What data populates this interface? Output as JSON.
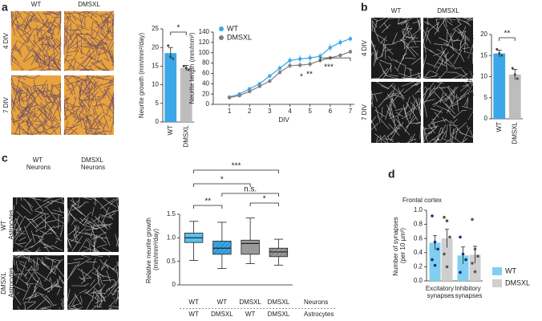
{
  "panel_labels": [
    "a",
    "b",
    "c",
    "d"
  ],
  "image_panels": [
    {
      "columns": [
        "WT",
        "DMSXL"
      ],
      "rows": [
        "4 DIV",
        "7 DIV"
      ]
    },
    {
      "columns": [
        "WT",
        "DMSXL"
      ],
      "rows": [
        "4 DIV",
        "7 DIV"
      ]
    },
    {
      "columns": [
        "WT Neurons",
        "DMSXL Neurons"
      ],
      "rows": [
        "WT Astrocytes",
        "DMSXL Astrocytes"
      ]
    }
  ],
  "chart_data": [
    {
      "type": "bar",
      "ylabel": "Neurite growth (mm/mm²/day)",
      "categories": [
        "WT",
        "DMSXL"
      ],
      "values": [
        18.5,
        14.5
      ],
      "errors": [
        1.5,
        0.7
      ],
      "points": [
        [
          20.5,
          17.5,
          17
        ],
        [
          15,
          14.5,
          14
        ]
      ],
      "colors": [
        "#3aa8e8",
        "#bdbdbd"
      ],
      "ylim": [
        0,
        25
      ],
      "yticks": [
        0,
        5,
        10,
        15,
        20,
        25
      ],
      "annotations": [
        "*"
      ]
    },
    {
      "type": "line",
      "ylabel": "Neurite length (mm/mm²)",
      "xlabel": "DIV",
      "x": [
        1,
        1.5,
        2,
        2.5,
        3,
        3.5,
        4,
        4.5,
        5,
        5.5,
        6,
        6.5,
        7
      ],
      "series": [
        {
          "name": "WT",
          "color": "#3aa8e8",
          "values": [
            14,
            20,
            30,
            40,
            55,
            70,
            85,
            88,
            90,
            93,
            110,
            120,
            127
          ],
          "errors": [
            1,
            1,
            2,
            3,
            4,
            5,
            6,
            7,
            7,
            7,
            7,
            6,
            5
          ]
        },
        {
          "name": "DMSXL",
          "color": "#7f7f7f",
          "values": [
            13,
            17,
            25,
            35,
            45,
            62,
            75,
            76,
            78,
            85,
            90,
            95,
            102
          ],
          "errors": [
            1,
            1,
            2,
            2,
            3,
            4,
            5,
            5,
            5,
            4,
            4,
            4,
            4
          ]
        }
      ],
      "xlim": [
        0.2,
        7.2
      ],
      "xticks": [
        1,
        2,
        3,
        4,
        5,
        6,
        7
      ],
      "ylim": [
        0,
        140
      ],
      "yticks": [
        0,
        20,
        40,
        60,
        80,
        100,
        120,
        140
      ],
      "legend": "upper left",
      "annotations": [
        "*",
        "**",
        "***"
      ]
    },
    {
      "type": "bar",
      "ylabel": "Neurite growth (mm/mm²/day)",
      "categories": [
        "WT",
        "DMSXL"
      ],
      "values": [
        15.5,
        10.5
      ],
      "errors": [
        0.8,
        1.2
      ],
      "points": [
        [
          16.5,
          15.5,
          15
        ],
        [
          12,
          10.5,
          9.5
        ]
      ],
      "colors": [
        "#3aa8e8",
        "#bdbdbd"
      ],
      "ylim": [
        0,
        20
      ],
      "yticks": [
        0,
        5,
        10,
        15,
        20
      ],
      "annotations": [
        "**"
      ]
    },
    {
      "type": "box",
      "ylabel": "Relative neurite growth (mm/mm²/day)",
      "row_labels": [
        "Neurons",
        "Astrocytes"
      ],
      "neurons": [
        "WT",
        "WT",
        "DMSXL",
        "DMSXL"
      ],
      "astrocytes": [
        "WT",
        "DMSXL",
        "WT",
        "DMSXL"
      ],
      "boxes": [
        {
          "min": 0.52,
          "q1": 0.9,
          "median": 1.0,
          "q3": 1.1,
          "max": 1.35
        },
        {
          "min": 0.35,
          "q1": 0.65,
          "median": 0.78,
          "q3": 0.93,
          "max": 1.33
        },
        {
          "min": 0.45,
          "q1": 0.65,
          "median": 0.88,
          "q3": 0.95,
          "max": 1.42
        },
        {
          "min": 0.42,
          "q1": 0.6,
          "median": 0.7,
          "q3": 0.78,
          "max": 0.97
        }
      ],
      "colors": [
        "#5bc0eb",
        "#3aa8e8",
        "#9a9a9a",
        "#9a9a9a"
      ],
      "hatched": [
        false,
        true,
        false,
        true
      ],
      "ylim": [
        0,
        1.5
      ],
      "yticks": [
        0,
        0.5,
        {
          "value": 1,
          "label": "1.0"
        },
        1.5
      ],
      "annotations": [
        "***",
        "*",
        "n.s.",
        "**",
        "*"
      ]
    },
    {
      "type": "grouped_bar",
      "title": "Frontal cortex",
      "ylabel": "Number of synapses (per 10 µm²)",
      "categories": [
        "Excitatory synapses",
        "Inhibitory synapses"
      ],
      "series": [
        {
          "name": "WT",
          "color": "#7fd0f0",
          "dot_color": "#1a2a8a",
          "values": [
            0.54,
            0.36
          ],
          "errors": [
            0.1,
            0.12
          ],
          "points": [
            [
              0.92,
              0.55,
              0.45,
              0.3,
              0.22
            ],
            [
              0.62,
              0.38,
              0.3,
              0.12
            ]
          ]
        },
        {
          "name": "DMSXL",
          "color": "#cfcfcf",
          "dot_color": "#555555",
          "values": [
            0.6,
            0.37
          ],
          "errors": [
            0.13,
            0.12
          ],
          "points": [
            [
              0.9,
              0.85,
              0.62,
              0.38,
              0.2
            ],
            [
              0.87,
              0.45,
              0.35,
              0.25,
              0.13
            ]
          ]
        }
      ],
      "ylim": [
        0,
        1
      ],
      "yticks": [
        {
          "value": 0,
          "label": "0.0"
        },
        0.2,
        0.4,
        0.6,
        0.8,
        {
          "value": 1,
          "label": "1.0"
        }
      ],
      "legend": "right"
    }
  ]
}
